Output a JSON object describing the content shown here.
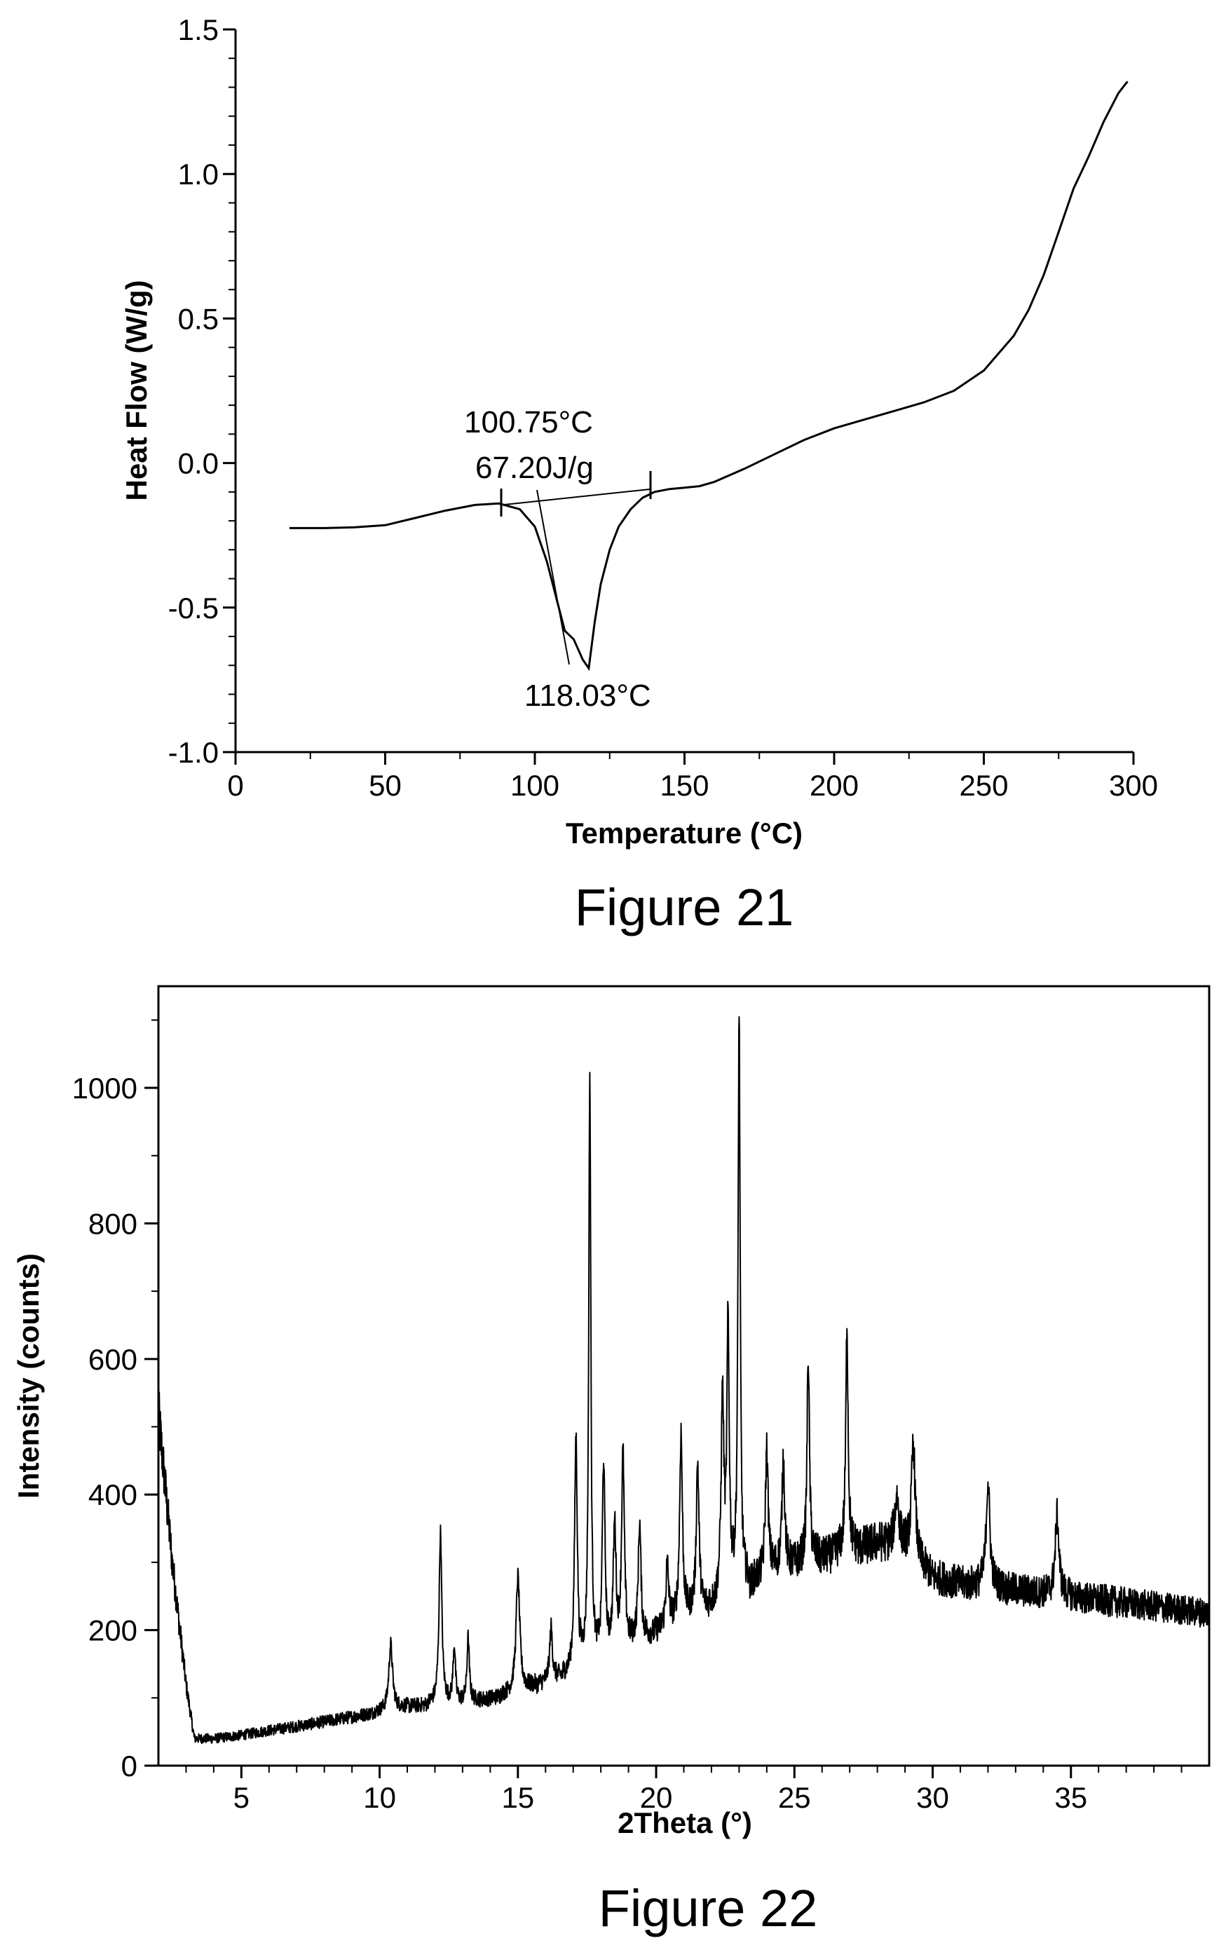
{
  "chart_data": [
    {
      "type": "line",
      "caption": "Figure 21",
      "title": "",
      "xlabel": "Temperature (°C)",
      "ylabel": "Heat Flow (W/g)",
      "xlim": [
        0,
        300
      ],
      "ylim": [
        -1.0,
        1.5
      ],
      "xticks": [
        "0",
        "50",
        "100",
        "150",
        "200",
        "250",
        "300"
      ],
      "yticks": [
        "-1.0",
        "-0.5",
        "0.0",
        "0.5",
        "1.0",
        "1.5"
      ],
      "grid": false,
      "legend": "none",
      "annotations": [
        "100.75°C",
        "67.20J/g",
        "118.03°C"
      ],
      "series": [
        {
          "x": [
            18,
            30,
            40,
            50,
            60,
            70,
            80,
            88,
            95,
            100,
            104,
            107,
            110,
            113,
            116,
            118,
            120,
            122,
            125,
            128,
            132,
            136,
            140,
            145,
            150,
            155,
            160,
            170,
            180,
            190,
            200,
            210,
            220,
            230,
            240,
            250,
            255,
            260,
            265,
            270,
            275,
            280,
            285,
            290,
            295,
            298
          ],
          "y": [
            -0.225,
            -0.225,
            -0.222,
            -0.215,
            -0.19,
            -0.165,
            -0.145,
            -0.14,
            -0.16,
            -0.22,
            -0.34,
            -0.46,
            -0.58,
            -0.61,
            -0.68,
            -0.71,
            -0.55,
            -0.42,
            -0.3,
            -0.22,
            -0.16,
            -0.12,
            -0.1,
            -0.09,
            -0.085,
            -0.08,
            -0.065,
            -0.02,
            0.03,
            0.08,
            0.12,
            0.15,
            0.18,
            0.21,
            0.25,
            0.32,
            0.38,
            0.44,
            0.53,
            0.65,
            0.8,
            0.95,
            1.06,
            1.18,
            1.28,
            1.32
          ]
        }
      ],
      "baseline": {
        "x": [
          89,
          139
        ],
        "y": [
          -0.145,
          -0.09
        ]
      }
    },
    {
      "type": "line",
      "caption": "Figure 22",
      "title": "",
      "xlabel": "2Theta (°)",
      "ylabel": "Intensity (counts)",
      "xlim": [
        2,
        40
      ],
      "ylim": [
        0,
        1150
      ],
      "xticks": [
        "5",
        "10",
        "15",
        "20",
        "25",
        "30",
        "35"
      ],
      "yticks": [
        "0",
        "200",
        "400",
        "600",
        "800",
        "1000"
      ],
      "grid": false,
      "legend": "none",
      "background": {
        "x": [
          2,
          2.5,
          3,
          3.3,
          4,
          5,
          6,
          7,
          8,
          9,
          10,
          11,
          12,
          13,
          14,
          15,
          16,
          17,
          18,
          19,
          20,
          21,
          22,
          23,
          24,
          25,
          26,
          27,
          28,
          29,
          30,
          31,
          32,
          33,
          34,
          35,
          36,
          37,
          38,
          39,
          40
        ],
        "y": [
          520,
          300,
          120,
          40,
          40,
          45,
          52,
          58,
          65,
          72,
          80,
          88,
          92,
          95,
          100,
          110,
          125,
          140,
          160,
          180,
          200,
          220,
          240,
          265,
          285,
          300,
          310,
          320,
          330,
          320,
          280,
          270,
          265,
          260,
          255,
          250,
          245,
          240,
          235,
          230,
          225
        ]
      },
      "peaks": {
        "x": [
          10.4,
          12.2,
          12.7,
          13.2,
          15.0,
          16.2,
          17.1,
          17.6,
          18.1,
          18.5,
          18.8,
          19.4,
          20.4,
          20.9,
          21.5,
          22.4,
          22.6,
          23.0,
          24.0,
          24.6,
          25.5,
          26.9,
          28.7,
          29.3,
          32.0,
          34.5
        ],
        "y": [
          180,
          345,
          180,
          190,
          280,
          205,
          490,
          1020,
          450,
          350,
          460,
          360,
          300,
          495,
          450,
          540,
          650,
          1110,
          470,
          455,
          610,
          655,
          395,
          475,
          420,
          370
        ],
        "widths": [
          0.08,
          0.06,
          0.05,
          0.05,
          0.08,
          0.06,
          0.06,
          0.045,
          0.06,
          0.06,
          0.06,
          0.06,
          0.06,
          0.06,
          0.06,
          0.06,
          0.05,
          0.045,
          0.06,
          0.06,
          0.05,
          0.05,
          0.1,
          0.08,
          0.08,
          0.08
        ]
      }
    }
  ]
}
